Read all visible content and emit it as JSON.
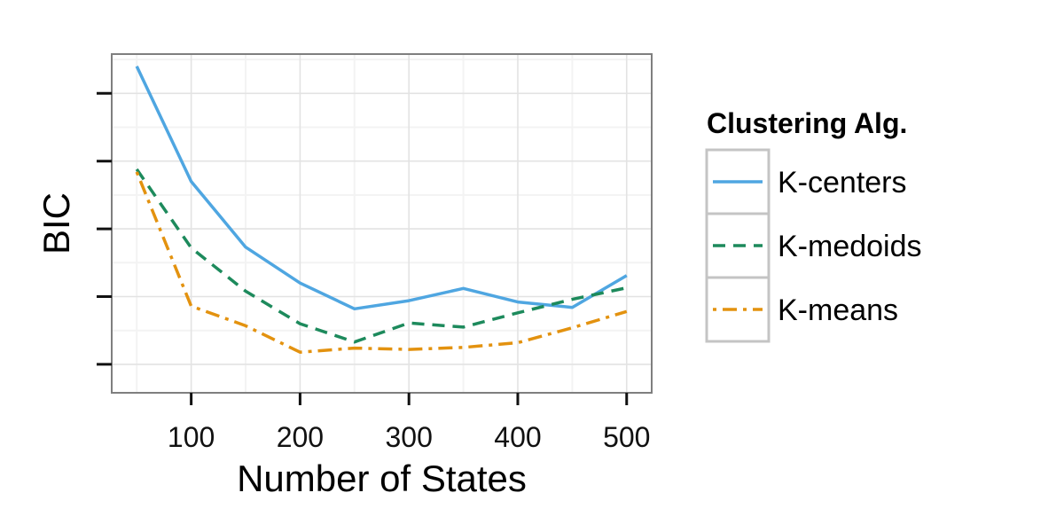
{
  "chart_data": {
    "type": "line",
    "xlabel": "Number of States",
    "ylabel": "BIC",
    "x": [
      50,
      100,
      150,
      200,
      250,
      300,
      350,
      400,
      450,
      500
    ],
    "xlim": [
      27,
      523
    ],
    "xticks": [
      100,
      200,
      300,
      400,
      500
    ],
    "ylim": [
      -0.42,
      4.58
    ],
    "yticks": [
      0,
      1,
      2,
      3,
      4
    ],
    "ytick_labels_shown": false,
    "grid": true,
    "legend": {
      "title": "Clustering Alg.",
      "position": "right"
    },
    "series": [
      {
        "name": "K-centers",
        "color": "#4fa6e1",
        "dash": "solid",
        "values": [
          4.4,
          2.7,
          1.73,
          1.2,
          0.82,
          0.94,
          1.12,
          0.92,
          0.84,
          1.31
        ]
      },
      {
        "name": "K-medoids",
        "color": "#1d8a5c",
        "dash": "dashed",
        "values": [
          2.88,
          1.72,
          1.08,
          0.6,
          0.33,
          0.61,
          0.55,
          0.76,
          0.96,
          1.13
        ]
      },
      {
        "name": "K-means",
        "color": "#e3920f",
        "dash": "dotdash",
        "values": [
          2.84,
          0.86,
          0.57,
          0.18,
          0.24,
          0.22,
          0.25,
          0.32,
          0.54,
          0.78
        ]
      }
    ]
  }
}
